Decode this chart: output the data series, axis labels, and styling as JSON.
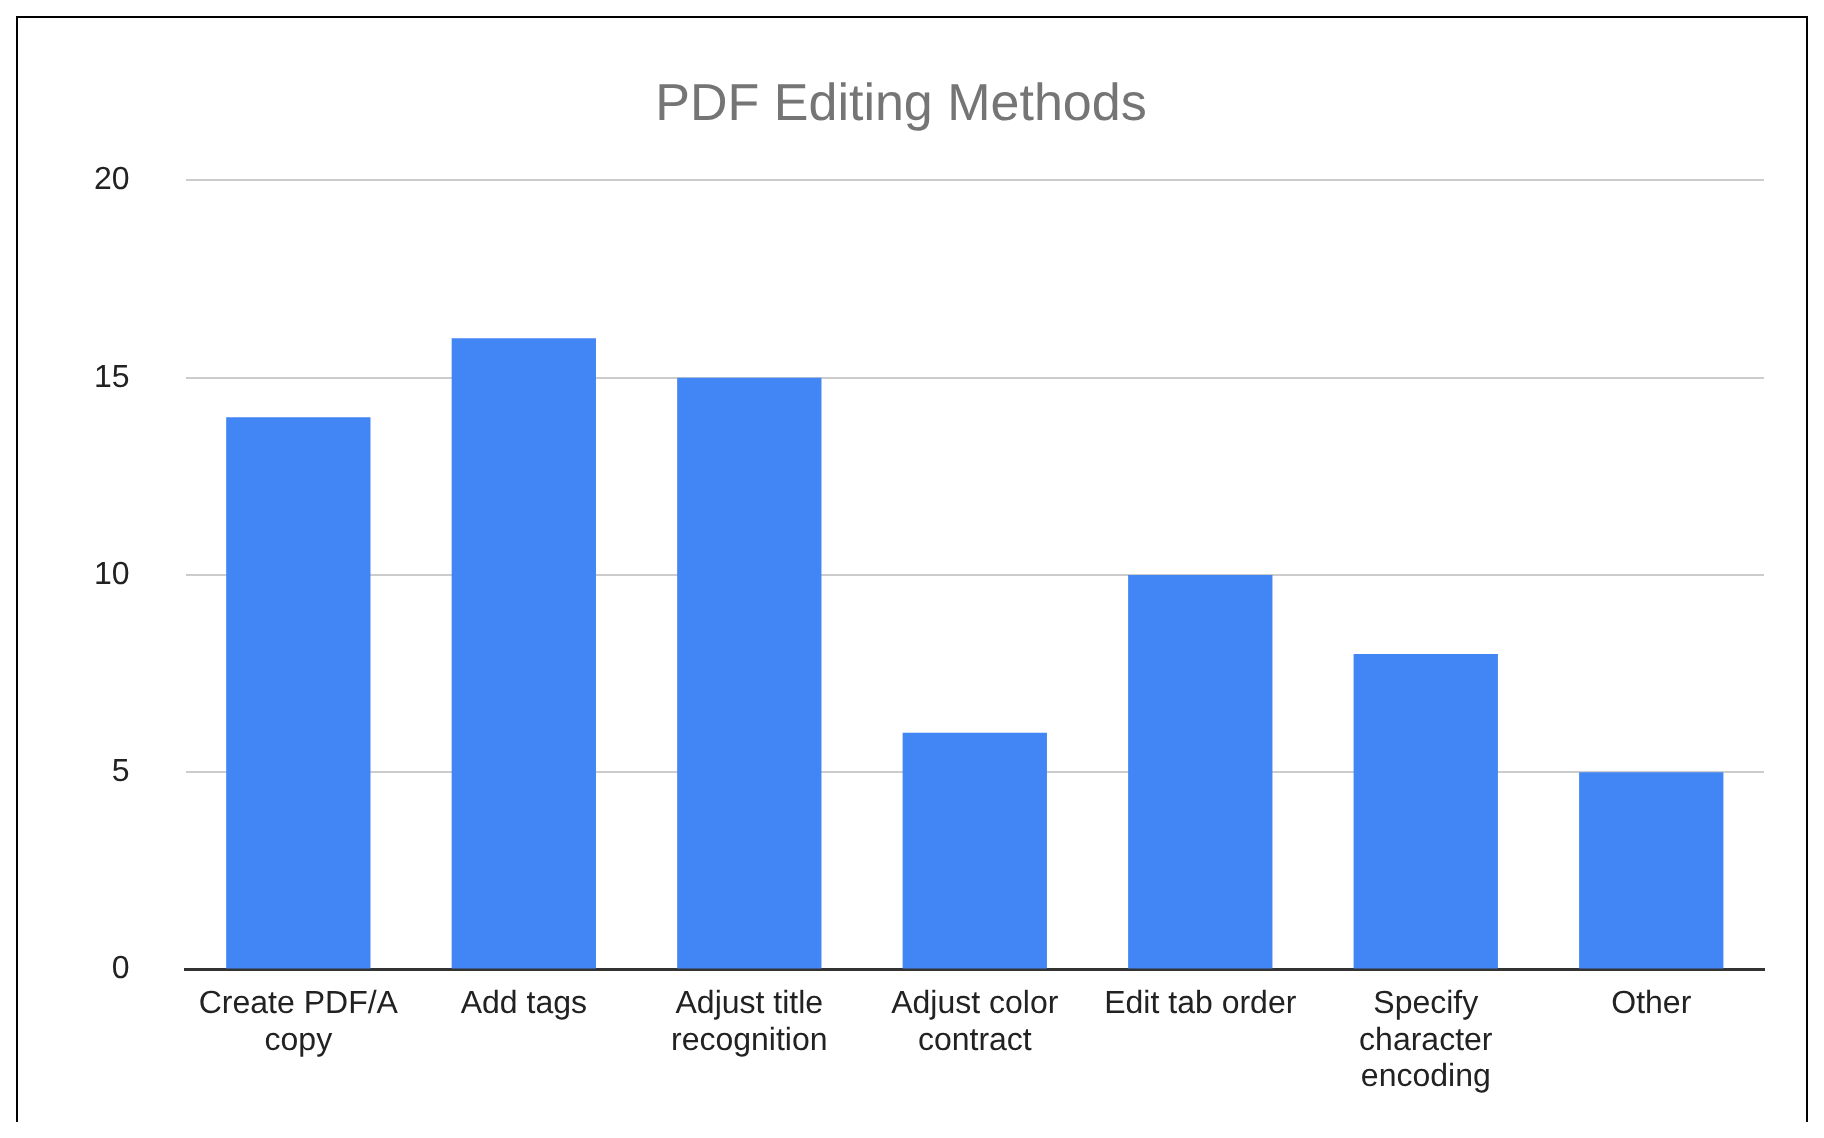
{
  "chart_data": {
    "type": "bar",
    "title": "PDF Editing Methods",
    "categories": [
      "Create PDF/A copy",
      "Add tags",
      "Adjust title recognition",
      "Adjust color contract",
      "Edit tab order",
      "Specify character encoding",
      "Other"
    ],
    "values": [
      14,
      16,
      15,
      6,
      10,
      8,
      5
    ],
    "color": "#4285f4",
    "ylim": [
      0,
      20
    ],
    "yticks": [
      0,
      5,
      10,
      15,
      20
    ],
    "grid": "y",
    "legend": false
  }
}
